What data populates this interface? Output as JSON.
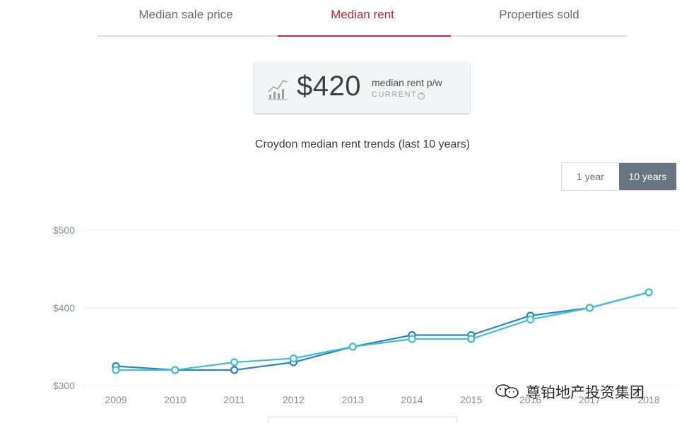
{
  "tabs": [
    {
      "label": "Median sale price"
    },
    {
      "label": "Median rent"
    },
    {
      "label": "Properties sold"
    }
  ],
  "stat": {
    "value": "$420",
    "label": "median rent p/w",
    "current": "CURRENT",
    "info_glyph": "?"
  },
  "toggle": {
    "option1": "1 year",
    "option2": "10 years"
  },
  "watermark": "尊铂地产投资集团",
  "colors": {
    "series_dark": "#2a86c4",
    "series_light": "#43bfd0",
    "accent": "#c4293a"
  },
  "chart_data": {
    "type": "line",
    "title": "Croydon median rent trends (last 10 years)",
    "x": [
      "2009",
      "2010",
      "2011",
      "2012",
      "2013",
      "2014",
      "2015",
      "2016",
      "2017",
      "2018"
    ],
    "y_ticks": [
      "$500",
      "$400",
      "$300"
    ],
    "ylim": [
      300,
      500
    ],
    "grid": true,
    "series": [
      {
        "values": [
          325,
          320,
          320,
          330,
          350,
          365,
          365,
          390,
          400,
          420
        ]
      },
      {
        "values": [
          320,
          320,
          330,
          335,
          350,
          360,
          360,
          385,
          400,
          420
        ]
      }
    ]
  }
}
